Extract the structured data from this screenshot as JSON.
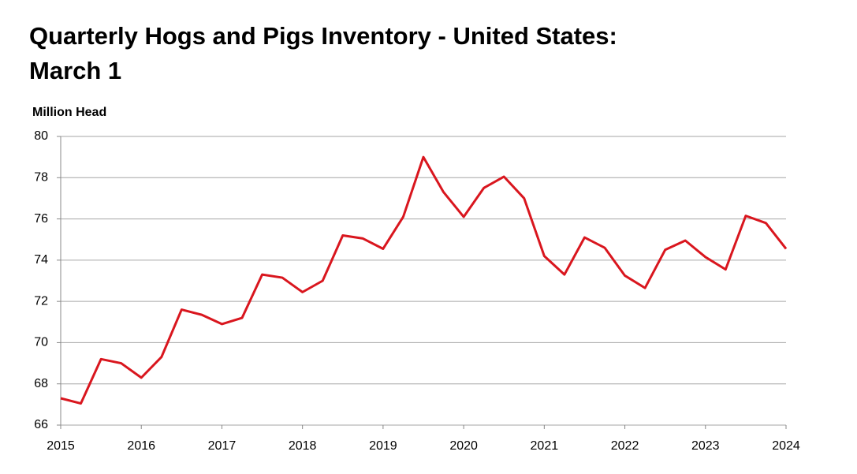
{
  "chart_data": {
    "type": "line",
    "title": "Quarterly Hogs and Pigs Inventory - United States: March 1",
    "y_label": "Million Head",
    "x": [
      2015,
      2015.25,
      2015.5,
      2015.75,
      2016,
      2016.25,
      2016.5,
      2016.75,
      2017,
      2017.25,
      2017.5,
      2017.75,
      2018,
      2018.25,
      2018.5,
      2018.75,
      2019,
      2019.25,
      2019.5,
      2019.75,
      2020,
      2020.25,
      2020.5,
      2020.75,
      2021,
      2021.25,
      2021.5,
      2021.75,
      2022,
      2022.25,
      2022.5,
      2022.75,
      2023,
      2023.25,
      2023.5,
      2023.75,
      2024
    ],
    "series": [
      {
        "color": "#d9161e",
        "values": [
          67.3,
          67.05,
          69.2,
          69.0,
          68.3,
          69.3,
          71.6,
          71.35,
          70.9,
          71.2,
          73.3,
          73.15,
          72.45,
          73.0,
          75.2,
          75.05,
          74.55,
          76.1,
          79.0,
          77.3,
          76.1,
          77.5,
          78.05,
          77.0,
          74.2,
          73.3,
          75.1,
          74.6,
          73.25,
          72.65,
          74.5,
          74.95,
          74.15,
          73.55,
          76.15,
          75.8,
          74.55
        ]
      }
    ],
    "xlim": [
      2015,
      2024
    ],
    "xticks": [
      2015,
      2016,
      2017,
      2018,
      2019,
      2020,
      2021,
      2022,
      2023,
      2024
    ],
    "ylim": [
      66,
      80
    ],
    "yticks": [
      66,
      68,
      70,
      72,
      74,
      76,
      78,
      80
    ],
    "grid": true
  }
}
